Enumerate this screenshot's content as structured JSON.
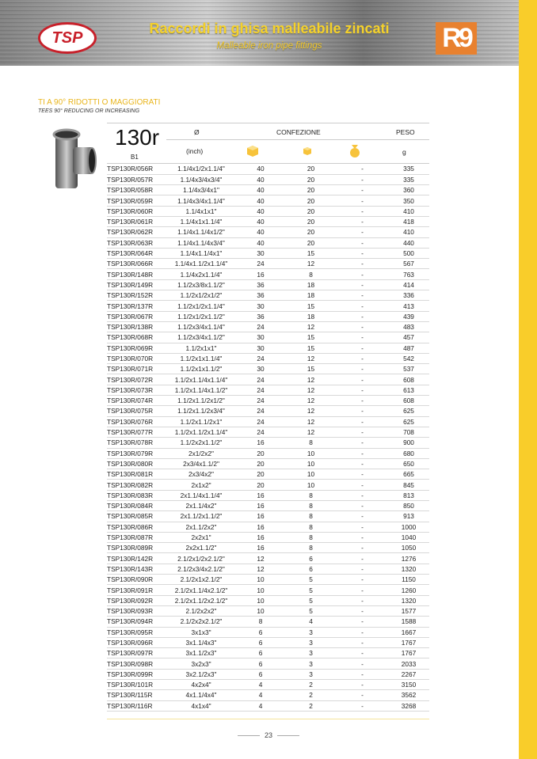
{
  "header": {
    "brand": "TSP",
    "title": "Raccordi in ghisa malleabile zincati",
    "subtitle": "Malleable iron pipe fittings",
    "partner_logo": "R9"
  },
  "colors": {
    "accent_yellow": "#f9cd2a",
    "brand_red": "#c8202a",
    "partner_orange": "#e8812f"
  },
  "section": {
    "title": "TI A 90° RIDOTTI O MAGGIORATI",
    "subtitle": "TEES 90° REDUCING OR INCREASING"
  },
  "table_header": {
    "code": "130r",
    "sub": "B1",
    "diameter": "Ø",
    "diameter_unit": "(inch)",
    "packaging": "CONFEZIONE",
    "weight": "PESO",
    "weight_unit": "g",
    "icons": [
      "large-box-icon",
      "small-box-icon",
      "bag-icon"
    ]
  },
  "rows": [
    [
      "TSP130R/056R",
      "1.1/4x1/2x1.1/4\"",
      "40",
      "20",
      "-",
      "335"
    ],
    [
      "TSP130R/057R",
      "1.1/4x3/4x3/4\"",
      "40",
      "20",
      "-",
      "335"
    ],
    [
      "TSP130R/058R",
      "1.1/4x3/4x1\"",
      "40",
      "20",
      "-",
      "360"
    ],
    [
      "TSP130R/059R",
      "1.1/4x3/4x1.1/4\"",
      "40",
      "20",
      "-",
      "350"
    ],
    [
      "TSP130R/060R",
      "1.1/4x1x1\"",
      "40",
      "20",
      "-",
      "410"
    ],
    [
      "TSP130R/061R",
      "1.1/4x1x1.1/4\"",
      "40",
      "20",
      "-",
      "418"
    ],
    [
      "TSP130R/062R",
      "1.1/4x1.1/4x1/2\"",
      "40",
      "20",
      "-",
      "410"
    ],
    [
      "TSP130R/063R",
      "1.1/4x1.1/4x3/4\"",
      "40",
      "20",
      "-",
      "440"
    ],
    [
      "TSP130R/064R",
      "1.1/4x1.1/4x1\"",
      "30",
      "15",
      "-",
      "500"
    ],
    [
      "TSP130R/066R",
      "1.1/4x1.1/2x1.1/4\"",
      "24",
      "12",
      "-",
      "567"
    ],
    [
      "TSP130R/148R",
      "1.1/4x2x1.1/4\"",
      "16",
      "8",
      "-",
      "763"
    ],
    [
      "TSP130R/149R",
      "1.1/2x3/8x1.1/2\"",
      "36",
      "18",
      "-",
      "414"
    ],
    [
      "TSP130R/152R",
      "1.1/2x1/2x1/2\"",
      "36",
      "18",
      "-",
      "336"
    ],
    [
      "TSP130R/137R",
      "1.1/2x1/2x1.1/4\"",
      "30",
      "15",
      "-",
      "413"
    ],
    [
      "TSP130R/067R",
      "1.1/2x1/2x1.1/2\"",
      "36",
      "18",
      "-",
      "439"
    ],
    [
      "TSP130R/138R",
      "1.1/2x3/4x1.1/4\"",
      "24",
      "12",
      "-",
      "483"
    ],
    [
      "TSP130R/068R",
      "1.1/2x3/4x1.1/2\"",
      "30",
      "15",
      "-",
      "457"
    ],
    [
      "TSP130R/069R",
      "1.1/2x1x1\"",
      "30",
      "15",
      "-",
      "487"
    ],
    [
      "TSP130R/070R",
      "1.1/2x1x1.1/4\"",
      "24",
      "12",
      "-",
      "542"
    ],
    [
      "TSP130R/071R",
      "1.1/2x1x1.1/2\"",
      "30",
      "15",
      "-",
      "537"
    ],
    [
      "TSP130R/072R",
      "1.1/2x1.1/4x1.1/4\"",
      "24",
      "12",
      "-",
      "608"
    ],
    [
      "TSP130R/073R",
      "1.1/2x1.1/4x1.1/2\"",
      "24",
      "12",
      "-",
      "613"
    ],
    [
      "TSP130R/074R",
      "1.1/2x1.1/2x1/2\"",
      "24",
      "12",
      "-",
      "608"
    ],
    [
      "TSP130R/075R",
      "1.1/2x1.1/2x3/4\"",
      "24",
      "12",
      "-",
      "625"
    ],
    [
      "TSP130R/076R",
      "1.1/2x1.1/2x1\"",
      "24",
      "12",
      "-",
      "625"
    ],
    [
      "TSP130R/077R",
      "1.1/2x1.1/2x1.1/4\"",
      "24",
      "12",
      "-",
      "708"
    ],
    [
      "TSP130R/078R",
      "1.1/2x2x1.1/2\"",
      "16",
      "8",
      "-",
      "900"
    ],
    [
      "TSP130R/079R",
      "2x1/2x2\"",
      "20",
      "10",
      "-",
      "680"
    ],
    [
      "TSP130R/080R",
      "2x3/4x1.1/2\"",
      "20",
      "10",
      "-",
      "650"
    ],
    [
      "TSP130R/081R",
      "2x3/4x2\"",
      "20",
      "10",
      "-",
      "665"
    ],
    [
      "TSP130R/082R",
      "2x1x2\"",
      "20",
      "10",
      "-",
      "845"
    ],
    [
      "TSP130R/083R",
      "2x1.1/4x1.1/4\"",
      "16",
      "8",
      "-",
      "813"
    ],
    [
      "TSP130R/084R",
      "2x1.1/4x2\"",
      "16",
      "8",
      "-",
      "850"
    ],
    [
      "TSP130R/085R",
      "2x1.1/2x1.1/2\"",
      "16",
      "8",
      "-",
      "913"
    ],
    [
      "TSP130R/086R",
      "2x1.1/2x2\"",
      "16",
      "8",
      "-",
      "1000"
    ],
    [
      "TSP130R/087R",
      "2x2x1\"",
      "16",
      "8",
      "-",
      "1040"
    ],
    [
      "TSP130R/089R",
      "2x2x1.1/2\"",
      "16",
      "8",
      "-",
      "1050"
    ],
    [
      "TSP130R/142R",
      "2.1/2x1/2x2.1/2\"",
      "12",
      "6",
      "-",
      "1276"
    ],
    [
      "TSP130R/143R",
      "2.1/2x3/4x2.1/2\"",
      "12",
      "6",
      "-",
      "1320"
    ],
    [
      "TSP130R/090R",
      "2.1/2x1x2.1/2\"",
      "10",
      "5",
      "-",
      "1150"
    ],
    [
      "TSP130R/091R",
      "2.1/2x1.1/4x2.1/2\"",
      "10",
      "5",
      "-",
      "1260"
    ],
    [
      "TSP130R/092R",
      "2.1/2x1.1/2x2.1/2\"",
      "10",
      "5",
      "-",
      "1320"
    ],
    [
      "TSP130R/093R",
      "2.1/2x2x2\"",
      "10",
      "5",
      "-",
      "1577"
    ],
    [
      "TSP130R/094R",
      "2.1/2x2x2.1/2\"",
      "8",
      "4",
      "-",
      "1588"
    ],
    [
      "TSP130R/095R",
      "3x1x3\"",
      "6",
      "3",
      "-",
      "1667"
    ],
    [
      "TSP130R/096R",
      "3x1.1/4x3\"",
      "6",
      "3",
      "-",
      "1767"
    ],
    [
      "TSP130R/097R",
      "3x1.1/2x3\"",
      "6",
      "3",
      "-",
      "1767"
    ],
    [
      "TSP130R/098R",
      "3x2x3\"",
      "6",
      "3",
      "-",
      "2033"
    ],
    [
      "TSP130R/099R",
      "3x2.1/2x3\"",
      "6",
      "3",
      "-",
      "2267"
    ],
    [
      "TSP130R/101R",
      "4x2x4\"",
      "4",
      "2",
      "-",
      "3150"
    ],
    [
      "TSP130R/115R",
      "4x1.1/4x4\"",
      "4",
      "2",
      "-",
      "3562"
    ],
    [
      "TSP130R/116R",
      "4x1x4\"",
      "4",
      "2",
      "-",
      "3268"
    ]
  ],
  "page_number": "23"
}
